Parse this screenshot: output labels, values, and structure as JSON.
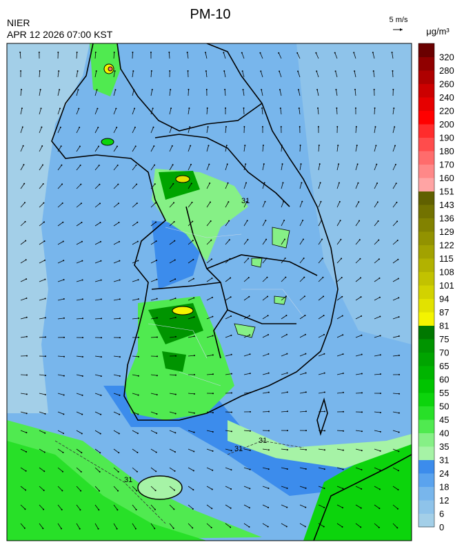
{
  "header": {
    "title": "PM-10",
    "source": "NIER",
    "datetime": "APR 12 2026 07:00 KST",
    "wind_scale": "5 m/s",
    "unit": "μg/m³"
  },
  "colorbar": {
    "labels": [
      0,
      6,
      12,
      18,
      24,
      31,
      35,
      40,
      45,
      50,
      55,
      60,
      65,
      70,
      75,
      81,
      87,
      94,
      101,
      108,
      115,
      122,
      129,
      136,
      143,
      151,
      160,
      170,
      180,
      190,
      200,
      220,
      240,
      260,
      280,
      320
    ],
    "colors": [
      "#a3cfe8",
      "#8ec3ea",
      "#78b6ec",
      "#5aa3ee",
      "#3c8cec",
      "#a6f3a6",
      "#86f086",
      "#50ea50",
      "#28e028",
      "#0cd40c",
      "#00c400",
      "#00b400",
      "#00a400",
      "#009400",
      "#007800",
      "#f4f400",
      "#e2e200",
      "#d2d200",
      "#c2c200",
      "#b2b200",
      "#a2a200",
      "#929200",
      "#828200",
      "#727200",
      "#606000",
      "#ffa4a4",
      "#ff8888",
      "#ff6c6c",
      "#ff4c4c",
      "#ff2c2c",
      "#ff0000",
      "#e60000",
      "#cc0000",
      "#ae0000",
      "#900000",
      "#6a0000"
    ]
  },
  "map": {
    "contour_labels": [
      "31",
      "31",
      "31",
      "31"
    ]
  }
}
